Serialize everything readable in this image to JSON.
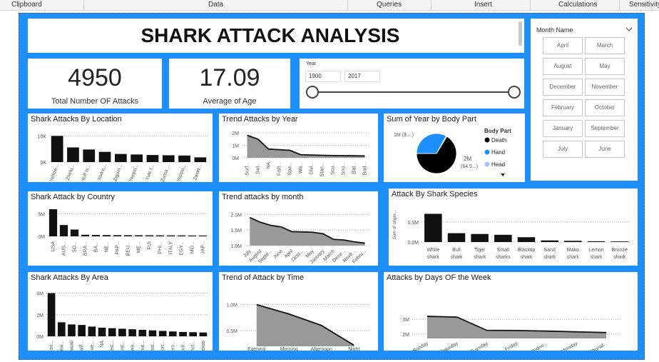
{
  "ribbon": [
    "Clipboard",
    "Data",
    "Queries",
    "Insert",
    "Calculations",
    "Sensitivity"
  ],
  "dashboard_title": "SHARK ATTACK ANALYSIS",
  "kpis": [
    {
      "value": "4950",
      "label": "Total Number OF Attacks"
    },
    {
      "value": "17.09",
      "label": "Average of Age"
    }
  ],
  "year_slicer": {
    "label": "Year",
    "start": "1900",
    "end": "2017"
  },
  "month_slicer": {
    "title": "Month Name",
    "items": [
      "April",
      "March",
      "August",
      "May",
      "December",
      "November",
      "February",
      "October",
      "January",
      "September",
      "July",
      "June"
    ]
  },
  "colors": {
    "canvas": "#1e8fff",
    "bar": "#111111",
    "area": "#999999",
    "pie_blue": "#1e8fff",
    "pie_black": "#000000"
  },
  "charts": [
    {
      "key": "location",
      "title": "Shark Attacks By Location",
      "type": "bar",
      "yticks": [
        "10K",
        "0K"
      ],
      "ylim": [
        0,
        12000
      ],
      "categories": [
        "Yellow...",
        "Zhelu...",
        "Yoff Is...",
        "Yorke...",
        "Ziguin...",
        "Yeppo...",
        "Yule I...",
        "Zuma ...",
        "Yeppo...",
        "Zwart..."
      ],
      "values": [
        10000,
        5600,
        4800,
        3900,
        3100,
        2900,
        2700,
        2600,
        2500,
        1800
      ]
    },
    {
      "key": "trend_year",
      "title": "Trend Attacks by Year",
      "type": "area",
      "yticks": [
        "2M",
        "1M",
        "0M"
      ],
      "ylim": [
        0,
        2000000
      ],
      "categories": [
        "Surf...",
        "Swi...",
        "NA",
        "Fish...",
        "Spe...",
        "Wa...",
        "Divi...",
        "Stan...",
        "Scu...",
        "Sno...",
        "Bat...",
        "Bod..."
      ],
      "values": [
        1800000,
        1500000,
        700000,
        650000,
        600000,
        250000,
        220000,
        200000,
        180000,
        170000,
        160000,
        150000
      ]
    },
    {
      "key": "body_part",
      "title": "Sum of Year by Body Part",
      "type": "pie",
      "legend_title": "Body Part",
      "labels": [
        "Death",
        "Hand",
        "Head"
      ],
      "values": [
        2000000,
        1000000,
        20000
      ],
      "slice_labels": [
        "1M (3....)",
        "2M",
        "(64.5...)"
      ]
    },
    {
      "key": "country",
      "title": "Shark Attack by Country",
      "type": "bar",
      "yticks": [
        "5M",
        "0M"
      ],
      "ylim": [
        0,
        6000000
      ],
      "categories": [
        "USA",
        "AUS...",
        "SO...",
        "BRA...",
        "BA...",
        "NE...",
        "PAP...",
        "REU...",
        "ME...",
        "FIJI",
        "PHI...",
        "ITALY",
        "EGY...",
        "MO...",
        "JAP..."
      ],
      "values": [
        6000000,
        2500000,
        1500000,
        350000,
        300000,
        280000,
        260000,
        250000,
        240000,
        230000,
        220000,
        210000,
        200000,
        190000,
        180000
      ]
    },
    {
      "key": "trend_month",
      "title": "Trend attacks by month",
      "type": "area",
      "yticks": [
        "2.0M",
        "1.5M",
        "1.0M"
      ],
      "ylim": [
        1000000,
        2100000
      ],
      "categories": [
        "July",
        "August",
        "Septe...",
        "June",
        "April",
        "Octo...",
        "May",
        "January",
        "March",
        "Dece...",
        "Nove...",
        "Febru..."
      ],
      "values": [
        1900000,
        1750000,
        1650000,
        1600000,
        1450000,
        1440000,
        1430000,
        1380000,
        1200000,
        1180000,
        1120000,
        1080000
      ]
    },
    {
      "key": "species",
      "title": "Attack By Shark Species",
      "type": "bar",
      "ylabel": "Sum of origin...",
      "yticks": [
        "0.5M",
        "0.0M"
      ],
      "ylim": [
        0,
        850000
      ],
      "categories": [
        "White shark",
        "Bull shark",
        "Tiger shark",
        "Small sharks",
        "Blacktip shark",
        "Sand shark",
        "Mako shark",
        "Lemon shark",
        "Bronze shark"
      ],
      "values": [
        700000,
        220000,
        200000,
        180000,
        120000,
        40000,
        30000,
        20000,
        15000
      ]
    },
    {
      "key": "area",
      "title": "Shark Attacks By Area",
      "type": "bar",
      "yticks": [
        "4M",
        "2M",
        "0M"
      ],
      "ylim": [
        0,
        4300000
      ],
      "categories": [
        "Flori...",
        "New...",
        "Hawaii",
        "Calif...",
        "Que...",
        "NA",
        "West...",
        "West...",
        "Kwa...",
        "Sout...",
        "East...",
        "Nort...",
        "Pern...",
        "Sout...",
        "Vict...",
        "Texas"
      ],
      "values": [
        4000000,
        1300000,
        1100000,
        1050000,
        900000,
        800000,
        750000,
        700000,
        650000,
        600000,
        550000,
        500000,
        450000,
        400000,
        380000,
        350000
      ]
    },
    {
      "key": "trend_time",
      "title": "Trend of Attack by Time",
      "type": "area",
      "yticks": [
        "1.0M",
        "0.5M"
      ],
      "ylim": [
        200000,
        1050000
      ],
      "categories": [
        "Evening",
        "Morning",
        "Afternoon",
        "Night"
      ],
      "values": [
        1000000,
        820000,
        600000,
        220000
      ]
    },
    {
      "key": "days",
      "title": "Attacks by Days OF the Week",
      "type": "area",
      "yticks": [
        "3M",
        "2M"
      ],
      "ylim": [
        1700000,
        3300000
      ],
      "categories": [
        "Sunday",
        "Saturday",
        "Tuesday",
        "Friday",
        "Wedne...",
        "Monday",
        "Thursd..."
      ],
      "values": [
        3200000,
        3150000,
        2250000,
        2240000,
        2200000,
        2150000,
        2100000
      ]
    }
  ]
}
